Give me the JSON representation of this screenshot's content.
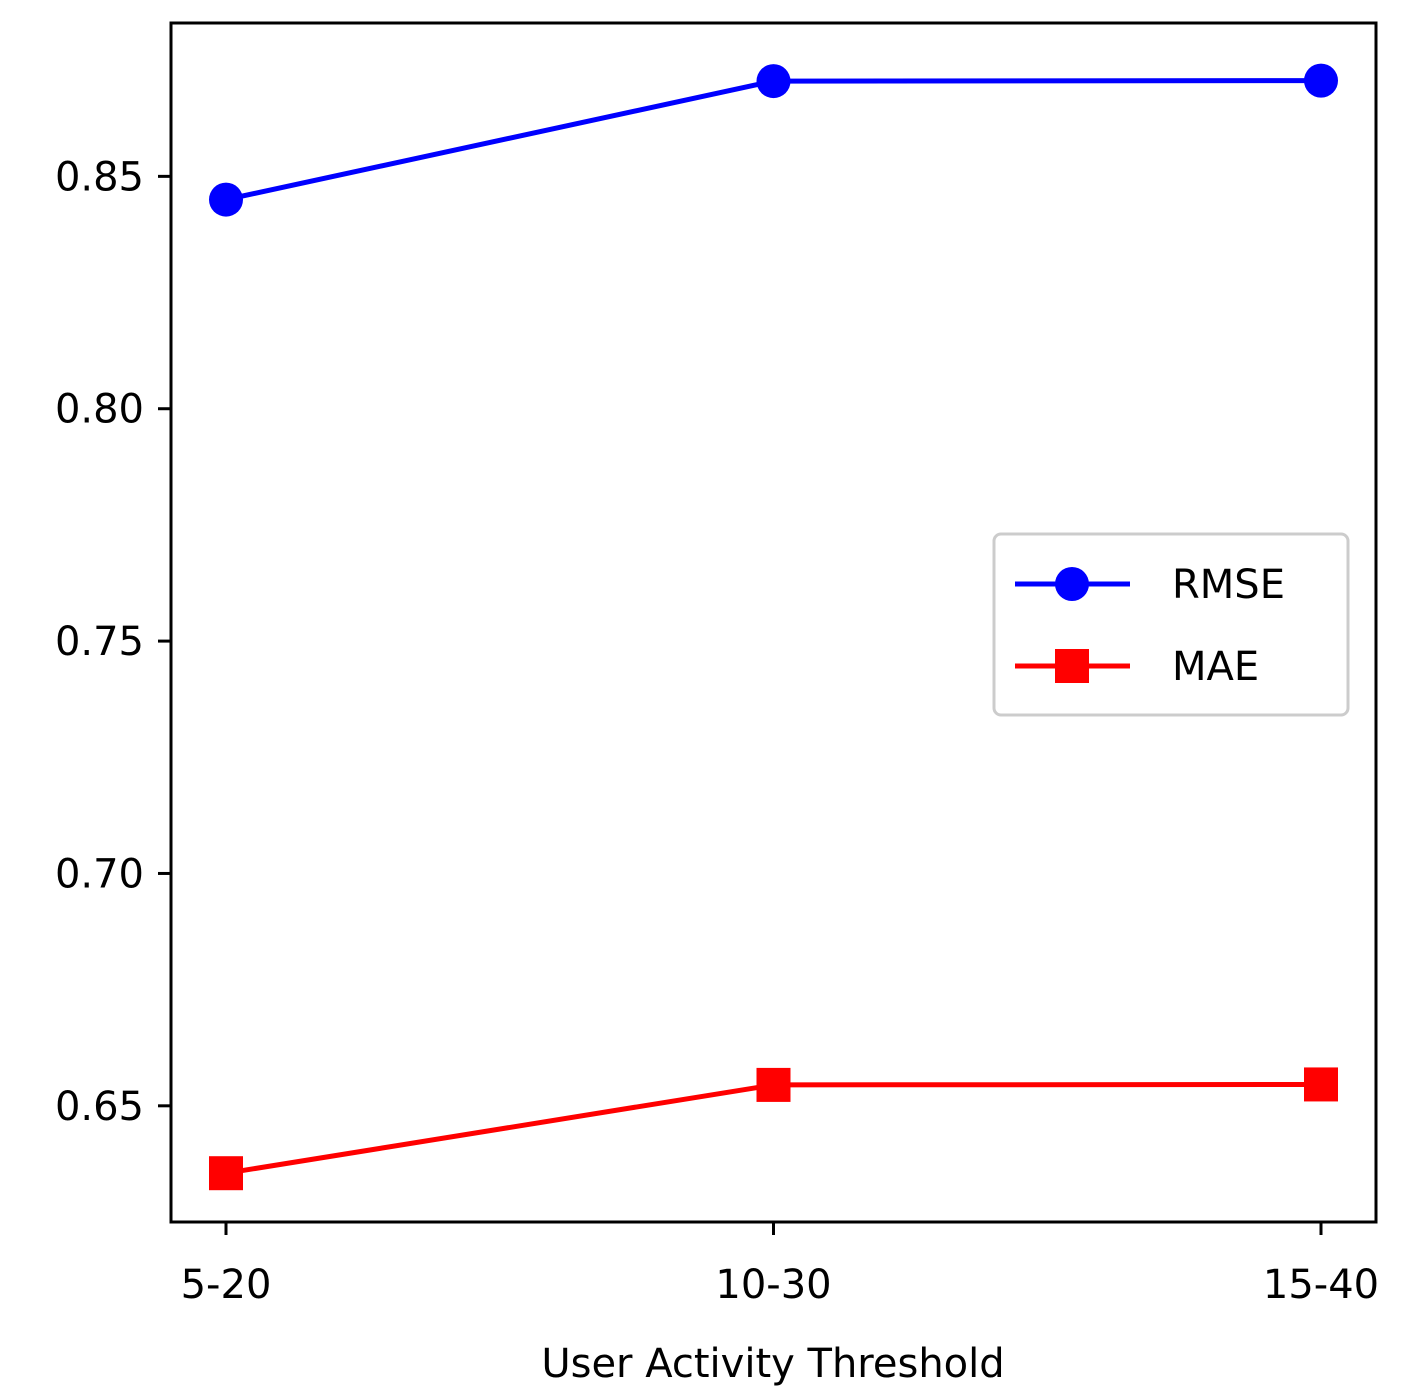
{
  "chart_data": {
    "type": "line",
    "title": "",
    "xlabel": "User Activity Threshold",
    "ylabel": "",
    "categories": [
      "5-20",
      "10-30",
      "15-40"
    ],
    "ylim": [
      0.625,
      0.883
    ],
    "yticks": [
      0.65,
      0.7,
      0.75,
      0.8,
      0.85
    ],
    "ytick_labels": [
      "0.65",
      "0.70",
      "0.75",
      "0.80",
      "0.85"
    ],
    "grid": false,
    "legend_position": "center-right",
    "series": [
      {
        "name": "RMSE",
        "values": [
          0.845,
          0.8705,
          0.8706
        ],
        "color": "#0000ff",
        "marker": "circle"
      },
      {
        "name": "MAE",
        "values": [
          0.6355,
          0.6545,
          0.6546
        ],
        "color": "#ff0000",
        "marker": "square"
      }
    ]
  }
}
